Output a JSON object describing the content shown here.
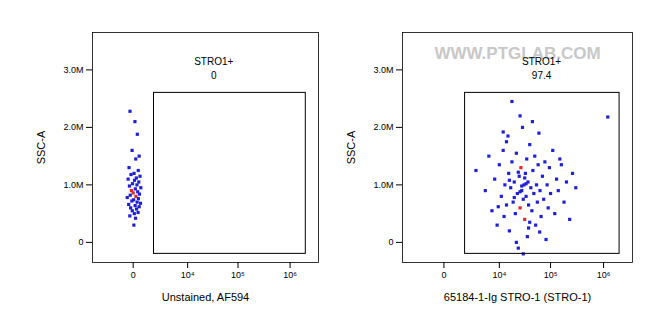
{
  "chart_data": [
    {
      "type": "scatter",
      "marker": "square",
      "x_label": "Unstained, AF594",
      "y_label": "SSC-A",
      "xlim": [
        -5000,
        3500000
      ],
      "ylim": [
        -350000,
        3650000
      ],
      "xticks": [
        0,
        {
          "value": 10000,
          "label": "10⁴"
        },
        {
          "value": 100000,
          "label": "10⁵"
        },
        {
          "value": 1000000,
          "label": "10⁶"
        }
      ],
      "yticks": [
        0,
        {
          "value": 1000000,
          "label": "1.0M"
        },
        {
          "value": 2000000,
          "label": "2.0M"
        },
        {
          "value": 3000000,
          "label": "3.0M"
        }
      ],
      "gate": {
        "label": "STRO1+",
        "value": 0,
        "x": [
          1500,
          2000000
        ],
        "y": [
          -200000,
          2600000
        ]
      },
      "x": [
        -150,
        80,
        200,
        -50,
        300,
        120,
        -200,
        250,
        40,
        -100,
        350,
        150,
        -250,
        60,
        280,
        -30,
        180,
        -180,
        400,
        100,
        -80,
        220,
        0,
        320,
        -140,
        130,
        -300,
        260,
        20,
        -60,
        190,
        380,
        -220,
        90,
        300,
        -120,
        160,
        -40,
        240,
        50,
        -160,
        110,
        30
      ],
      "values": [
        2280000,
        2100000,
        1880000,
        1600000,
        1500000,
        1450000,
        1300000,
        1250000,
        1200000,
        1180000,
        1150000,
        1120000,
        1100000,
        1080000,
        1050000,
        1020000,
        1000000,
        980000,
        950000,
        930000,
        900000,
        880000,
        860000,
        840000,
        820000,
        800000,
        780000,
        760000,
        740000,
        720000,
        700000,
        680000,
        660000,
        640000,
        620000,
        600000,
        580000,
        550000,
        520000,
        500000,
        460000,
        420000,
        300000
      ],
      "colors": [
        "#1f1fd6",
        "#1f1fd6",
        "#1f1fd6",
        "#1f1fd6",
        "#1f1fd6",
        "#1f1fd6",
        "#1f1fd6",
        "#1f1fd6",
        "#1f1fd6",
        "#1f1fd6",
        "#1f1fd6",
        "#1f1fd6",
        "#1f1fd6",
        "#1f1fd6",
        "#1f1fd6",
        "#1f1fd6",
        "#1f1fd6",
        "#1f1fd6",
        "#1f1fd6",
        "#1f1fd6",
        "#e0282b",
        "#1f1fd6",
        "#e0282b",
        "#1f1fd6",
        "#1f1fd6",
        "#e0282b",
        "#1f1fd6",
        "#1f1fd6",
        "#1f1fd6",
        "#1f1fd6",
        "#1f1fd6",
        "#1f1fd6",
        "#1f1fd6",
        "#1f1fd6",
        "#1f1fd6",
        "#1f1fd6",
        "#1f1fd6",
        "#1f1fd6",
        "#1f1fd6",
        "#1f1fd6",
        "#1f1fd6",
        "#1f1fd6",
        "#1f1fd6"
      ]
    },
    {
      "type": "scatter",
      "marker": "square",
      "x_label": "65184-1-Ig STRO-1 (STRO-1)",
      "y_label": "SSC-A",
      "watermark": "WWW.PTGLAB.COM",
      "xlim": [
        -5000,
        3500000
      ],
      "ylim": [
        -350000,
        3650000
      ],
      "xticks": [
        0,
        {
          "value": 10000,
          "label": "10⁴"
        },
        {
          "value": 100000,
          "label": "10⁵"
        },
        {
          "value": 1000000,
          "label": "10⁶"
        }
      ],
      "yticks": [
        0,
        {
          "value": 1000000,
          "label": "1.0M"
        },
        {
          "value": 2000000,
          "label": "2.0M"
        },
        {
          "value": 3000000,
          "label": "3.0M"
        }
      ],
      "gate": {
        "label": "STRO1+",
        "value": 97.4,
        "x": [
          1500,
          2000000
        ],
        "y": [
          -200000,
          2600000
        ]
      },
      "x": [
        3000,
        5000,
        6000,
        7000,
        8000,
        9000,
        10000,
        11000,
        12000,
        12500,
        13000,
        14000,
        15000,
        15500,
        16000,
        17000,
        18000,
        19000,
        20000,
        21000,
        22000,
        23000,
        24000,
        25000,
        26000,
        27000,
        28000,
        29000,
        30000,
        31000,
        32000,
        33000,
        34000,
        35000,
        36000,
        37000,
        38000,
        40000,
        42000,
        44000,
        46000,
        48000,
        50000,
        52000,
        54000,
        56000,
        58000,
        60000,
        63000,
        66000,
        70000,
        74000,
        78000,
        82000,
        86000,
        90000,
        95000,
        100000,
        110000,
        120000,
        130000,
        140000,
        160000,
        180000,
        200000,
        230000,
        260000,
        300000,
        18000,
        26000,
        45000,
        14000,
        22000,
        30000,
        38000,
        16000,
        24000,
        28000,
        32000,
        20000,
        26000,
        34000,
        1200000,
        12000,
        62000,
        9500,
        40000,
        150000
      ],
      "values": [
        1250000,
        900000,
        1500000,
        550000,
        1100000,
        300000,
        1350000,
        800000,
        1600000,
        450000,
        1000000,
        650000,
        1850000,
        1200000,
        200000,
        950000,
        1400000,
        700000,
        1050000,
        500000,
        1550000,
        850000,
        -100000,
        1150000,
        600000,
        1300000,
        900000,
        2000000,
        750000,
        1000000,
        400000,
        1200000,
        800000,
        1450000,
        100000,
        1050000,
        650000,
        1700000,
        950000,
        550000,
        1250000,
        850000,
        1500000,
        300000,
        1000000,
        700000,
        1350000,
        1900000,
        900000,
        450000,
        1150000,
        750000,
        1400000,
        50000,
        1000000,
        600000,
        1300000,
        850000,
        1600000,
        500000,
        1100000,
        900000,
        1350000,
        700000,
        1050000,
        400000,
        1200000,
        950000,
        2450000,
        2200000,
        2100000,
        1750000,
        0,
        -200000,
        250000,
        1080000,
        1220000,
        980000,
        1120000,
        780000,
        880000,
        1020000,
        2180000,
        1920000,
        180000,
        620000,
        350000,
        1450000
      ],
      "colors": [
        "#1f1fd6",
        "#1f1fd6",
        "#1f1fd6",
        "#1f1fd6",
        "#1f1fd6",
        "#1f1fd6",
        "#1f1fd6",
        "#1f1fd6",
        "#1f1fd6",
        "#1f1fd6",
        "#1f1fd6",
        "#1f1fd6",
        "#1f1fd6",
        "#1f1fd6",
        "#1f1fd6",
        "#1f1fd6",
        "#1f1fd6",
        "#1f1fd6",
        "#1f1fd6",
        "#1f1fd6",
        "#1f1fd6",
        "#1f1fd6",
        "#1f1fd6",
        "#1f1fd6",
        "#e0282b",
        "#e0282b",
        "#1f1fd6",
        "#1f1fd6",
        "#1f1fd6",
        "#1f1fd6",
        "#e0282b",
        "#1f1fd6",
        "#1f1fd6",
        "#1f1fd6",
        "#1f1fd6",
        "#1f1fd6",
        "#1f1fd6",
        "#1f1fd6",
        "#1f1fd6",
        "#1f1fd6",
        "#1f1fd6",
        "#1f1fd6",
        "#1f1fd6",
        "#1f1fd6",
        "#1f1fd6",
        "#1f1fd6",
        "#1f1fd6",
        "#1f1fd6",
        "#1f1fd6",
        "#1f1fd6",
        "#1f1fd6",
        "#1f1fd6",
        "#1f1fd6",
        "#1f1fd6",
        "#1f1fd6",
        "#1f1fd6",
        "#1f1fd6",
        "#1f1fd6",
        "#1f1fd6",
        "#1f1fd6",
        "#1f1fd6",
        "#1f1fd6",
        "#1f1fd6",
        "#1f1fd6",
        "#1f1fd6",
        "#1f1fd6",
        "#1f1fd6",
        "#1f1fd6",
        "#1f1fd6",
        "#1f1fd6",
        "#1f1fd6",
        "#1f1fd6",
        "#1f1fd6",
        "#1f1fd6",
        "#1f1fd6",
        "#1f1fd6",
        "#1f1fd6",
        "#1f1fd6",
        "#1f1fd6",
        "#1f1fd6",
        "#1f1fd6",
        "#1f1fd6",
        "#1f1fd6",
        "#1f1fd6",
        "#1f1fd6",
        "#1f1fd6",
        "#1f1fd6",
        "#1f1fd6"
      ]
    }
  ]
}
